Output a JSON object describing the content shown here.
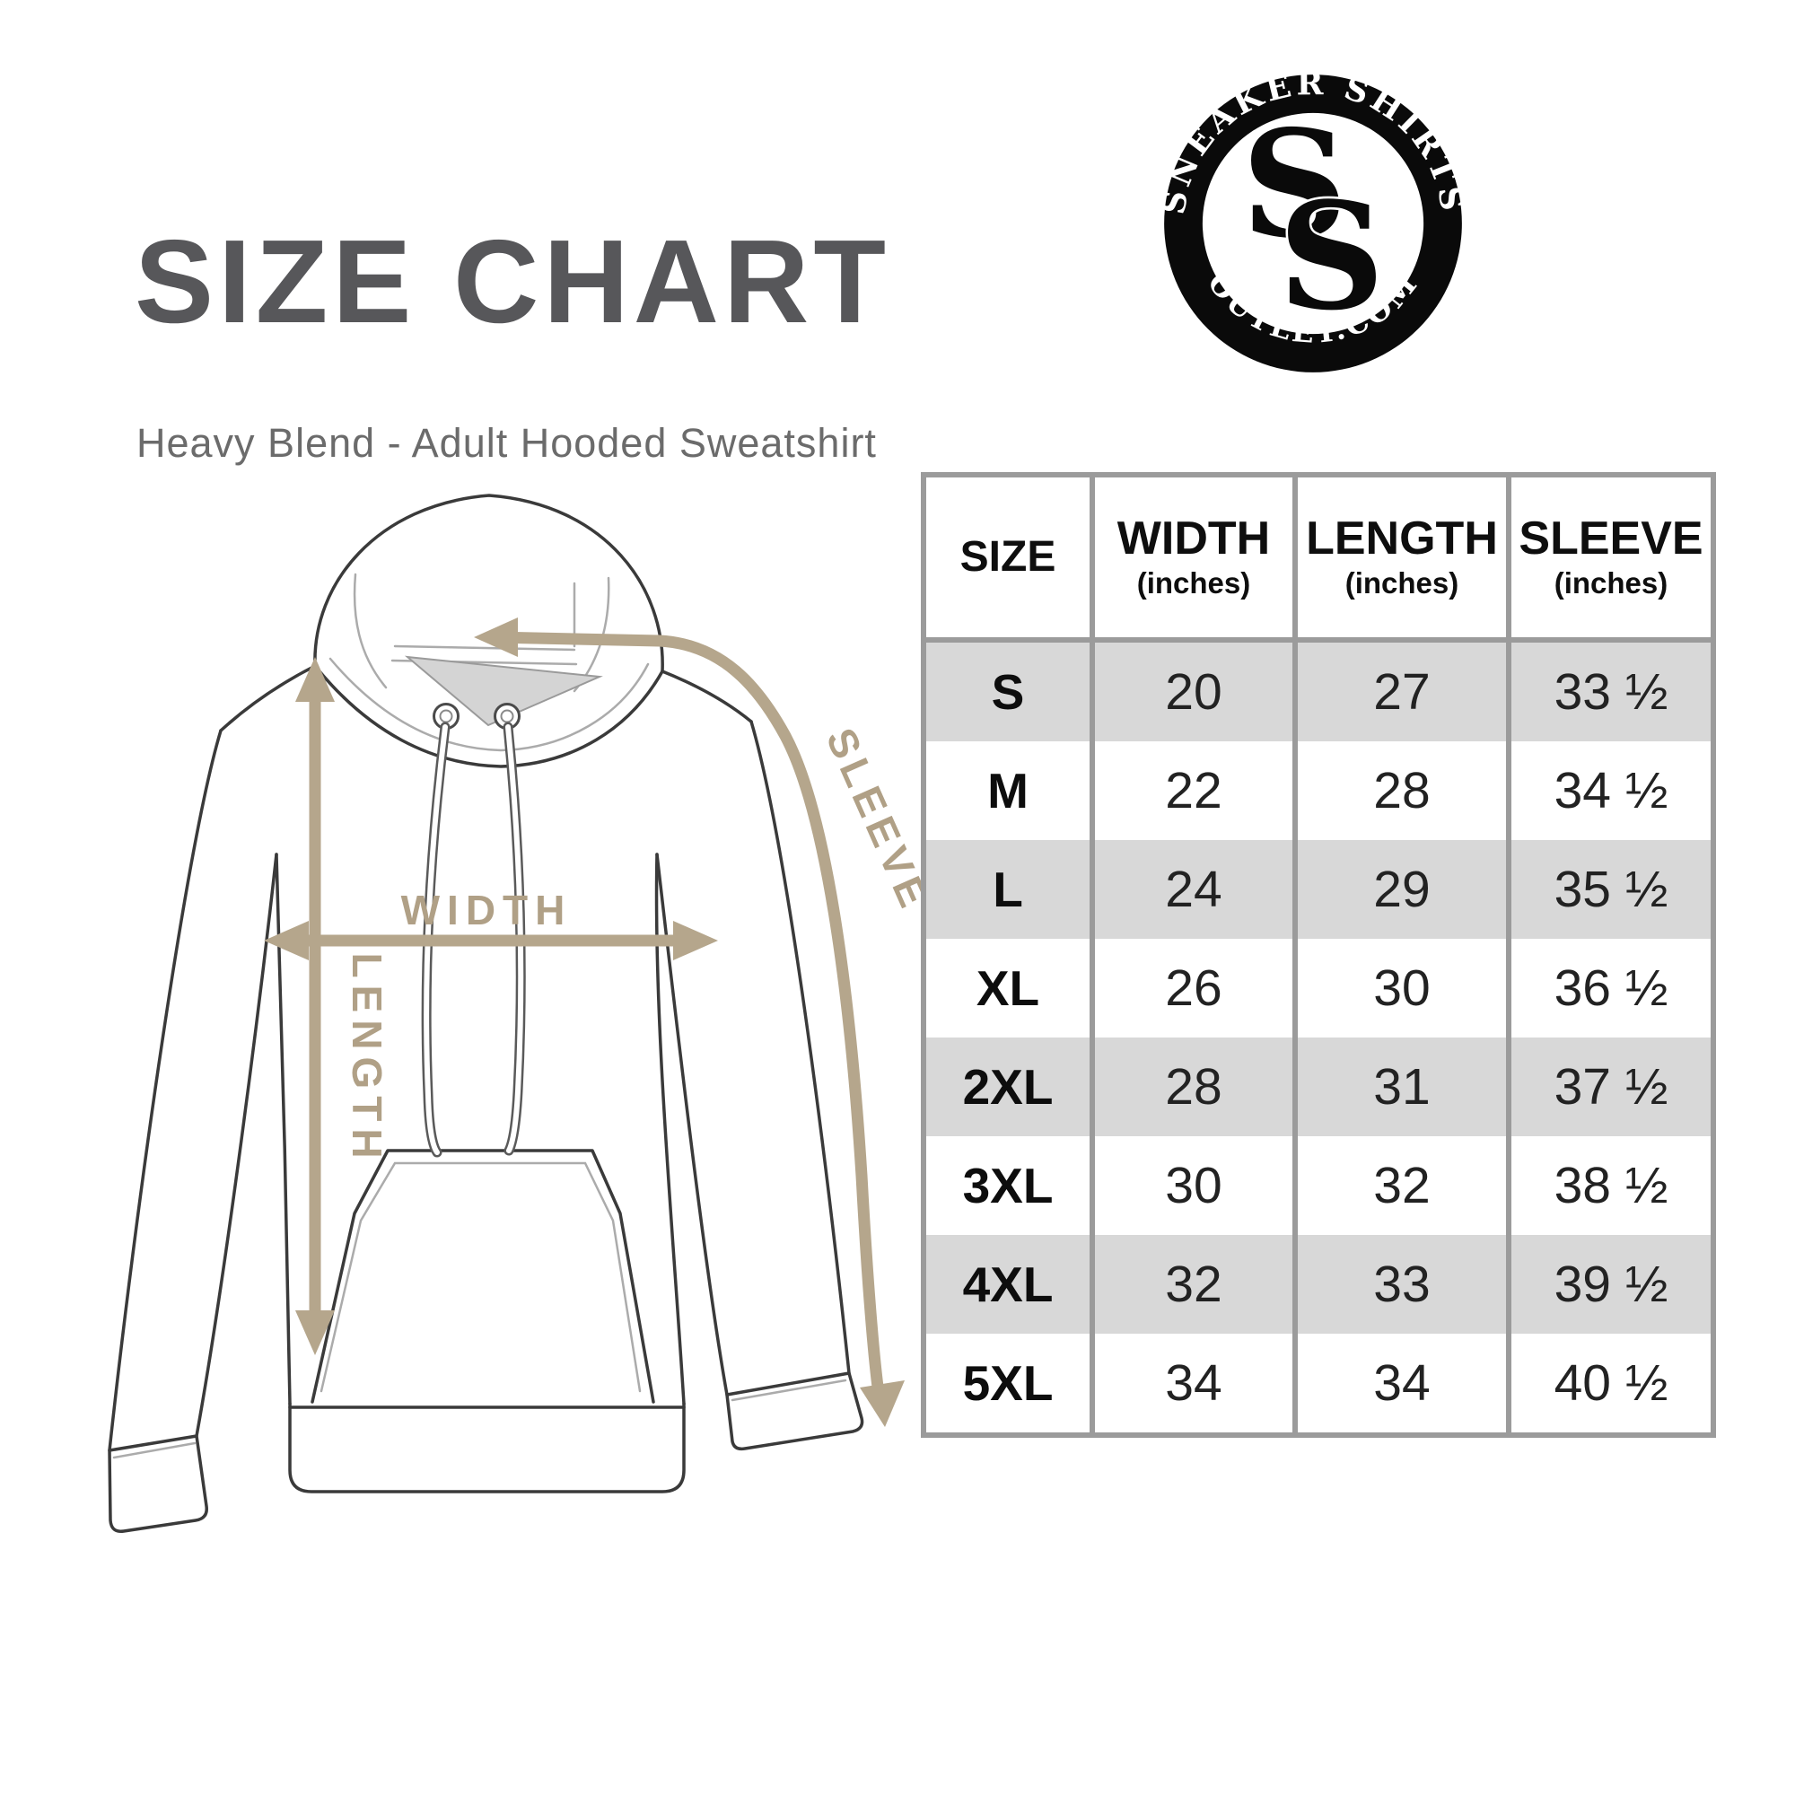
{
  "header": {
    "title": "SIZE CHART",
    "subtitle": "Heavy Blend - Adult Hooded Sweatshirt"
  },
  "logo": {
    "top_text": "SNEAKER SHIRTS",
    "bottom_text": "OUTLET.COM",
    "monogram_letter": "S"
  },
  "diagram": {
    "labels": {
      "width": "WIDTH",
      "length": "LENGTH",
      "sleeve": "SLEEVE"
    }
  },
  "table": {
    "columns": [
      {
        "label": "SIZE",
        "sub": ""
      },
      {
        "label": "WIDTH",
        "sub": "(inches)"
      },
      {
        "label": "LENGTH",
        "sub": "(inches)"
      },
      {
        "label": "SLEEVE",
        "sub": "(inches)"
      }
    ],
    "rows": [
      {
        "size": "S",
        "width": "20",
        "length": "27",
        "sleeve": "33 ½"
      },
      {
        "size": "M",
        "width": "22",
        "length": "28",
        "sleeve": "34 ½"
      },
      {
        "size": "L",
        "width": "24",
        "length": "29",
        "sleeve": "35 ½"
      },
      {
        "size": "XL",
        "width": "26",
        "length": "30",
        "sleeve": "36 ½"
      },
      {
        "size": "2XL",
        "width": "28",
        "length": "31",
        "sleeve": "37 ½"
      },
      {
        "size": "3XL",
        "width": "30",
        "length": "32",
        "sleeve": "38 ½"
      },
      {
        "size": "4XL",
        "width": "32",
        "length": "33",
        "sleeve": "39 ½"
      },
      {
        "size": "5XL",
        "width": "34",
        "length": "34",
        "sleeve": "40 ½"
      }
    ]
  },
  "colors": {
    "title_gray": "#57575a",
    "subtitle_gray": "#6b6b6b",
    "table_border_gray": "#9b9b9b",
    "row_alt_gray": "#d8d8d8",
    "arrow_tan": "#b5a68c",
    "logo_black": "#0a0a0a"
  }
}
